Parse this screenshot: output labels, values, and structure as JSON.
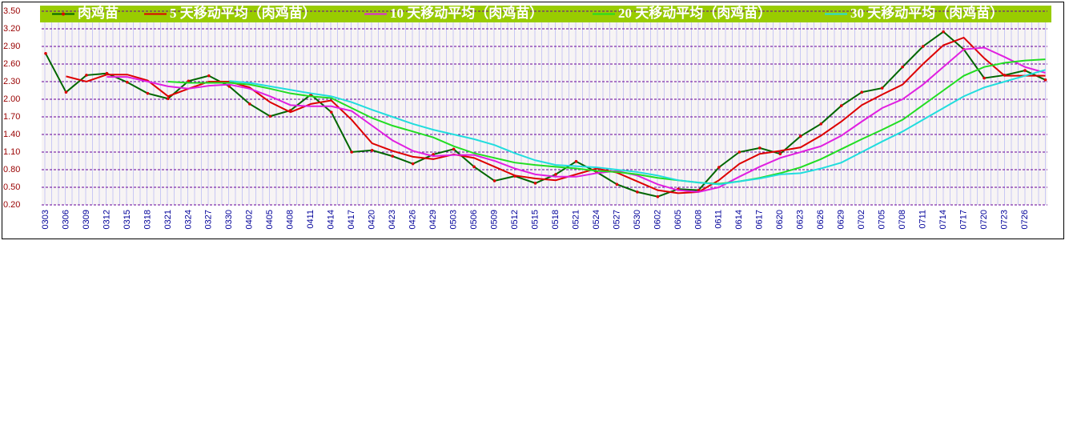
{
  "chart_data": {
    "type": "line",
    "categories": [
      "0303",
      "0306",
      "0309",
      "0312",
      "0315",
      "0318",
      "0321",
      "0324",
      "0327",
      "0330",
      "0402",
      "0405",
      "0408",
      "0411",
      "0414",
      "0417",
      "0420",
      "0423",
      "0426",
      "0429",
      "0503",
      "0506",
      "0509",
      "0512",
      "0515",
      "0518",
      "0521",
      "0524",
      "0527",
      "0530",
      "0602",
      "0605",
      "0608",
      "0611",
      "0614",
      "0617",
      "0620",
      "0623",
      "0626",
      "0629",
      "0702",
      "0705",
      "0708",
      "0711",
      "0714",
      "0717",
      "0720",
      "0723",
      "0726",
      null
    ],
    "series": [
      {
        "name": "肉鸡苗",
        "color": "#006600",
        "marker_color": "#dd0000",
        "values": [
          2.78,
          2.12,
          2.41,
          2.44,
          2.29,
          2.1,
          2.01,
          2.31,
          2.4,
          2.22,
          1.92,
          1.71,
          1.81,
          2.08,
          1.78,
          1.1,
          1.13,
          1.03,
          0.9,
          1.06,
          1.15,
          0.85,
          0.61,
          0.69,
          0.57,
          0.72,
          0.94,
          0.76,
          0.55,
          0.42,
          0.34,
          0.47,
          0.45,
          0.84,
          1.1,
          1.17,
          1.07,
          1.37,
          1.58,
          1.89,
          2.12,
          2.19,
          2.55,
          2.9,
          3.15,
          2.85,
          2.36,
          2.41,
          2.49,
          2.33
        ]
      },
      {
        "name": "5 天移动平均（肉鸡苗）",
        "color": "#dd0000",
        "values": [
          null,
          2.39,
          2.3,
          2.42,
          2.42,
          2.32,
          2.05,
          2.18,
          2.3,
          2.3,
          2.2,
          1.95,
          1.78,
          1.92,
          1.98,
          1.65,
          1.25,
          1.12,
          1.02,
          0.98,
          1.06,
          1.0,
          0.85,
          0.7,
          0.65,
          0.62,
          0.72,
          0.82,
          0.75,
          0.6,
          0.45,
          0.4,
          0.42,
          0.62,
          0.9,
          1.07,
          1.12,
          1.18,
          1.38,
          1.62,
          1.9,
          2.08,
          2.25,
          2.6,
          2.92,
          3.05,
          2.7,
          2.4,
          2.4,
          2.4
        ]
      },
      {
        "name": "10 天移动平均（肉鸡苗）",
        "color": "#e020e0",
        "values": [
          null,
          null,
          null,
          2.38,
          2.38,
          2.3,
          2.22,
          2.18,
          2.23,
          2.25,
          2.18,
          2.05,
          1.9,
          1.88,
          1.88,
          1.8,
          1.55,
          1.3,
          1.12,
          1.03,
          1.05,
          1.05,
          0.95,
          0.82,
          0.72,
          0.68,
          0.68,
          0.74,
          0.78,
          0.7,
          0.55,
          0.45,
          0.42,
          0.5,
          0.68,
          0.85,
          1.0,
          1.1,
          1.2,
          1.38,
          1.62,
          1.85,
          2.0,
          2.25,
          2.55,
          2.85,
          2.88,
          2.72,
          2.55,
          2.45
        ]
      },
      {
        "name": "20 天移动平均（肉鸡苗）",
        "color": "#22dd22",
        "values": [
          null,
          null,
          null,
          null,
          null,
          null,
          2.3,
          2.28,
          2.28,
          2.28,
          2.25,
          2.18,
          2.1,
          2.05,
          2.02,
          1.85,
          1.68,
          1.55,
          1.45,
          1.35,
          1.2,
          1.08,
          1.0,
          0.92,
          0.88,
          0.85,
          0.82,
          0.78,
          0.76,
          0.72,
          0.66,
          0.62,
          0.58,
          0.56,
          0.6,
          0.66,
          0.74,
          0.84,
          0.98,
          1.15,
          1.32,
          1.48,
          1.65,
          1.9,
          2.15,
          2.4,
          2.55,
          2.62,
          2.66,
          2.68
        ]
      },
      {
        "name": "30 天移动平均（肉鸡苗）",
        "color": "#22dddd",
        "values": [
          null,
          null,
          null,
          null,
          null,
          null,
          null,
          null,
          null,
          2.31,
          2.28,
          2.22,
          2.16,
          2.1,
          2.05,
          1.95,
          1.82,
          1.7,
          1.58,
          1.48,
          1.4,
          1.32,
          1.22,
          1.08,
          0.96,
          0.88,
          0.86,
          0.84,
          0.8,
          0.76,
          0.7,
          0.62,
          0.58,
          0.55,
          0.6,
          0.65,
          0.72,
          0.74,
          0.82,
          0.92,
          1.1,
          1.28,
          1.45,
          1.65,
          1.85,
          2.05,
          2.2,
          2.3,
          2.4,
          2.5
        ]
      }
    ],
    "ylim": [
      0.2,
      3.5
    ],
    "yticks": [
      {
        "value": 0.2,
        "label": "0.20"
      },
      {
        "value": 0.5,
        "label": "0.50"
      },
      {
        "value": 0.8,
        "label": "0.80"
      },
      {
        "value": 1.1,
        "label": "1.10"
      },
      {
        "value": 1.4,
        "label": "1.40"
      },
      {
        "value": 1.7,
        "label": "1.70"
      },
      {
        "value": 2.0,
        "label": "2.00"
      },
      {
        "value": 2.3,
        "label": "2.30"
      },
      {
        "value": 2.6,
        "label": "2.60"
      },
      {
        "value": 2.9,
        "label": "2.90"
      },
      {
        "value": 3.2,
        "label": "3.20"
      },
      {
        "value": 3.5,
        "label": "3.50"
      }
    ],
    "grid": true
  }
}
